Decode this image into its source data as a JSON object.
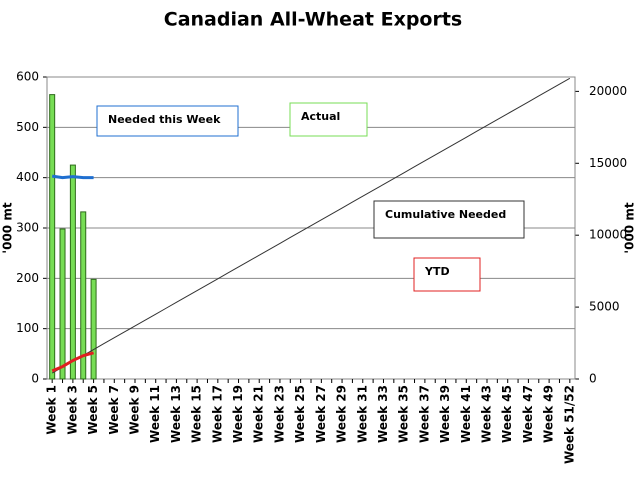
{
  "chart_data": {
    "type": "bar",
    "title": "Canadian All-Wheat Exports",
    "y_label": "'000 mt",
    "y2_label": "'000 mt",
    "categories": [
      "Week 1",
      null,
      "Week 3",
      null,
      "Week 5",
      null,
      "Week 7",
      null,
      "Week 9",
      null,
      "Week 11",
      null,
      "Week 13",
      null,
      "Week 15",
      null,
      "Week 17",
      null,
      "Week 19",
      null,
      "Week 21",
      null,
      "Week 23",
      null,
      "Week 25",
      null,
      "Week 27",
      null,
      "Week 29",
      null,
      "Week 31",
      null,
      "Week 33",
      null,
      "Week 35",
      null,
      "Week 37",
      null,
      "Week 39",
      null,
      "Week 41",
      null,
      "Week 43",
      null,
      "Week 45",
      null,
      "Week 47",
      null,
      "Week 49",
      null,
      "Week 51/52"
    ],
    "ylim": [
      0,
      600
    ],
    "yticks": [
      0,
      100,
      200,
      300,
      400,
      500,
      600
    ],
    "y2lim": [
      0,
      21000
    ],
    "y2ticks": [
      0,
      5000,
      10000,
      15000,
      20000
    ],
    "grid": true,
    "series": [
      {
        "name": "Actual",
        "type": "bar",
        "color": "#77dd55",
        "values": [
          565,
          298,
          425,
          332,
          198,
          null,
          null,
          null,
          null,
          null,
          null,
          null,
          null,
          null,
          null,
          null,
          null,
          null,
          null,
          null,
          null,
          null,
          null,
          null,
          null,
          null,
          null,
          null,
          null,
          null,
          null,
          null,
          null,
          null,
          null,
          null,
          null,
          null,
          null,
          null,
          null,
          null,
          null,
          null,
          null,
          null,
          null,
          null,
          null,
          null,
          null
        ]
      },
      {
        "name": "Needed this Week",
        "type": "line",
        "color": "#1f6fd0",
        "values": [
          403,
          400,
          402,
          400,
          400,
          null,
          null,
          null,
          null,
          null,
          null,
          null,
          null,
          null,
          null,
          null,
          null,
          null,
          null,
          null,
          null,
          null,
          null,
          null,
          null,
          null,
          null,
          null,
          null,
          null,
          null,
          null,
          null,
          null,
          null,
          null,
          null,
          null,
          null,
          null,
          null,
          null,
          null,
          null,
          null,
          null,
          null,
          null,
          null,
          null,
          null
        ]
      },
      {
        "name": "Cumulative Needed",
        "type": "line",
        "axis": "y2",
        "color": "#333333",
        "values": [
          410,
          820,
          1230,
          1640,
          2050,
          2460,
          2870,
          3280,
          3690,
          4100,
          4510,
          4920,
          5330,
          5740,
          6150,
          6560,
          6970,
          7380,
          7790,
          8200,
          8610,
          9020,
          9430,
          9840,
          10250,
          10660,
          11070,
          11480,
          11890,
          12300,
          12710,
          13120,
          13530,
          13940,
          14350,
          14760,
          15170,
          15580,
          15990,
          16400,
          16810,
          17220,
          17630,
          18040,
          18450,
          18860,
          19270,
          19680,
          20090,
          20500,
          20910
        ]
      },
      {
        "name": "YTD",
        "type": "line",
        "axis": "y2",
        "color": "#e02020",
        "values": [
          565,
          863,
          1288,
          1620,
          1818,
          null,
          null,
          null,
          null,
          null,
          null,
          null,
          null,
          null,
          null,
          null,
          null,
          null,
          null,
          null,
          null,
          null,
          null,
          null,
          null,
          null,
          null,
          null,
          null,
          null,
          null,
          null,
          null,
          null,
          null,
          null,
          null,
          null,
          null,
          null,
          null,
          null,
          null,
          null,
          null,
          null,
          null,
          null,
          null,
          null,
          null
        ]
      }
    ]
  }
}
